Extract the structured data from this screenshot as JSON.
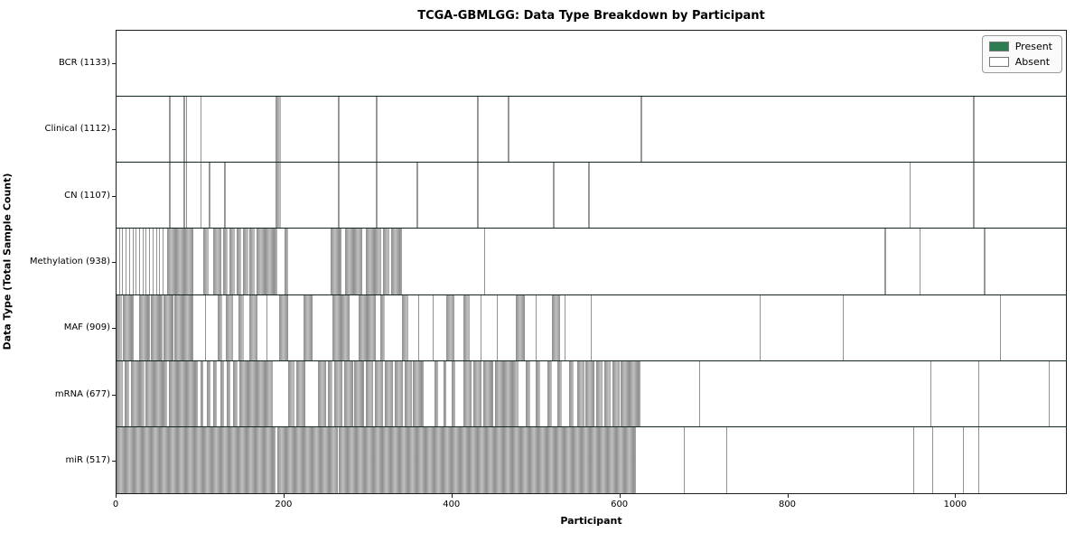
{
  "title": "TCGA-GBMLGG: Data Type Breakdown by Participant",
  "xlabel": "Participant",
  "ylabel": "Data Type (Total Sample Count)",
  "legend": {
    "items": [
      {
        "label": "Present",
        "color": "#2e7d52"
      },
      {
        "label": "Absent",
        "color": "#ffffff"
      }
    ]
  },
  "colors": {
    "present_fill": "#2d6549",
    "present_edge": "#1e4c37",
    "absent_fill": "#b5b5b5",
    "absent_edge": "#8e8e8e",
    "row_separator": "#10281c"
  },
  "chart_data": {
    "type": "heatmap",
    "title": "TCGA-GBMLGG: Data Type Breakdown by Participant",
    "xlabel": "Participant",
    "ylabel": "Data Type (Total Sample Count)",
    "x_ticks": [
      0,
      200,
      400,
      600,
      800,
      1000
    ],
    "xlim": [
      0,
      1133
    ],
    "legend_position": "upper right",
    "states": [
      "Present",
      "Absent"
    ],
    "rows": [
      {
        "label": "BCR (1133)",
        "name": "BCR",
        "total_samples": 1133,
        "absent": []
      },
      {
        "label": "Clinical (1112)",
        "name": "Clinical",
        "total_samples": 1112,
        "absent": [
          [
            63,
            65
          ],
          [
            80,
            81.5
          ],
          [
            83,
            84.5
          ],
          [
            100,
            101.5
          ],
          [
            190,
            196
          ],
          [
            264,
            266.5
          ],
          [
            309,
            311.5
          ],
          [
            430,
            432
          ],
          [
            467,
            469
          ],
          [
            625,
            627
          ],
          [
            1022,
            1024
          ]
        ]
      },
      {
        "label": "CN (1107)",
        "name": "CN",
        "total_samples": 1107,
        "absent": [
          [
            63,
            65
          ],
          [
            80,
            81.5
          ],
          [
            83,
            84.5
          ],
          [
            100,
            101.5
          ],
          [
            110,
            112
          ],
          [
            128,
            130
          ],
          [
            190,
            196
          ],
          [
            264,
            266.5
          ],
          [
            309,
            311.5
          ],
          [
            358,
            360
          ],
          [
            430,
            432
          ],
          [
            521,
            523
          ],
          [
            563,
            565
          ],
          [
            946,
            948
          ],
          [
            1022,
            1024
          ]
        ]
      },
      {
        "label": "Methylation (938)",
        "name": "Methylation",
        "total_samples": 938,
        "absent": [
          [
            3,
            4
          ],
          [
            7,
            8
          ],
          [
            11,
            12
          ],
          [
            15,
            16
          ],
          [
            19,
            20
          ],
          [
            23,
            24
          ],
          [
            27,
            28
          ],
          [
            31,
            32
          ],
          [
            35,
            36
          ],
          [
            39,
            40
          ],
          [
            43,
            44
          ],
          [
            47,
            48
          ],
          [
            51,
            52
          ],
          [
            55,
            56
          ],
          [
            60,
            92
          ],
          [
            104,
            110
          ],
          [
            115,
            125
          ],
          [
            127,
            133
          ],
          [
            135,
            141
          ],
          [
            143,
            149
          ],
          [
            151,
            157
          ],
          [
            159,
            165
          ],
          [
            167,
            192
          ],
          [
            200,
            205
          ],
          [
            256,
            268
          ],
          [
            273,
            293
          ],
          [
            297,
            316
          ],
          [
            318,
            326
          ],
          [
            328,
            341
          ],
          [
            366,
            367
          ],
          [
            439,
            440
          ],
          [
            916,
            918
          ],
          [
            958,
            959
          ],
          [
            1035,
            1037
          ]
        ]
      },
      {
        "label": "MAF (909)",
        "name": "MAF",
        "total_samples": 909,
        "absent": [
          [
            0,
            7
          ],
          [
            8,
            20
          ],
          [
            27,
            40
          ],
          [
            41,
            55
          ],
          [
            56,
            68
          ],
          [
            69,
            92
          ],
          [
            106,
            107
          ],
          [
            121,
            126
          ],
          [
            130,
            139
          ],
          [
            145,
            152
          ],
          [
            158,
            168
          ],
          [
            179,
            180
          ],
          [
            194,
            205
          ],
          [
            223,
            234
          ],
          [
            258,
            278
          ],
          [
            289,
            309
          ],
          [
            315,
            320
          ],
          [
            341,
            348
          ],
          [
            360,
            361
          ],
          [
            377,
            378
          ],
          [
            394,
            403
          ],
          [
            414,
            421
          ],
          [
            434,
            435
          ],
          [
            454,
            455
          ],
          [
            462,
            463
          ],
          [
            476,
            487
          ],
          [
            500,
            501
          ],
          [
            520,
            529
          ],
          [
            535,
            536
          ],
          [
            566,
            567
          ],
          [
            768,
            769
          ],
          [
            867,
            868
          ],
          [
            1054,
            1055
          ]
        ]
      },
      {
        "label": "mRNA (677)",
        "name": "mRNA",
        "total_samples": 677,
        "absent": [
          [
            0,
            8
          ],
          [
            10,
            15
          ],
          [
            17,
            33
          ],
          [
            35,
            60
          ],
          [
            62,
            97
          ],
          [
            100,
            104
          ],
          [
            108,
            112
          ],
          [
            115,
            120
          ],
          [
            124,
            128
          ],
          [
            131,
            136
          ],
          [
            139,
            144
          ],
          [
            147,
            187
          ],
          [
            205,
            212
          ],
          [
            214,
            225
          ],
          [
            240,
            250
          ],
          [
            252,
            258
          ],
          [
            260,
            270
          ],
          [
            272,
            282
          ],
          [
            284,
            295
          ],
          [
            297,
            306
          ],
          [
            308,
            318
          ],
          [
            320,
            330
          ],
          [
            332,
            342
          ],
          [
            344,
            352
          ],
          [
            354,
            366
          ],
          [
            380,
            384
          ],
          [
            390,
            394
          ],
          [
            400,
            404
          ],
          [
            414,
            424
          ],
          [
            426,
            436
          ],
          [
            438,
            450
          ],
          [
            452,
            480
          ],
          [
            488,
            494
          ],
          [
            500,
            506
          ],
          [
            514,
            520
          ],
          [
            526,
            532
          ],
          [
            540,
            546
          ],
          [
            550,
            558
          ],
          [
            560,
            570
          ],
          [
            572,
            580
          ],
          [
            582,
            590
          ],
          [
            592,
            600
          ],
          [
            602,
            625
          ],
          [
            695,
            696
          ],
          [
            766,
            767
          ],
          [
            918,
            919
          ],
          [
            971,
            972
          ],
          [
            1028,
            1030
          ],
          [
            1113,
            1114
          ]
        ]
      },
      {
        "label": "miR (517)",
        "name": "miR",
        "total_samples": 517,
        "absent": [
          [
            0,
            190
          ],
          [
            191.5,
            264
          ],
          [
            265.5,
            620
          ],
          [
            677,
            678
          ],
          [
            728,
            729
          ],
          [
            951,
            952
          ],
          [
            973,
            974
          ],
          [
            1010,
            1011
          ],
          [
            1028,
            1029.5
          ]
        ]
      }
    ]
  }
}
